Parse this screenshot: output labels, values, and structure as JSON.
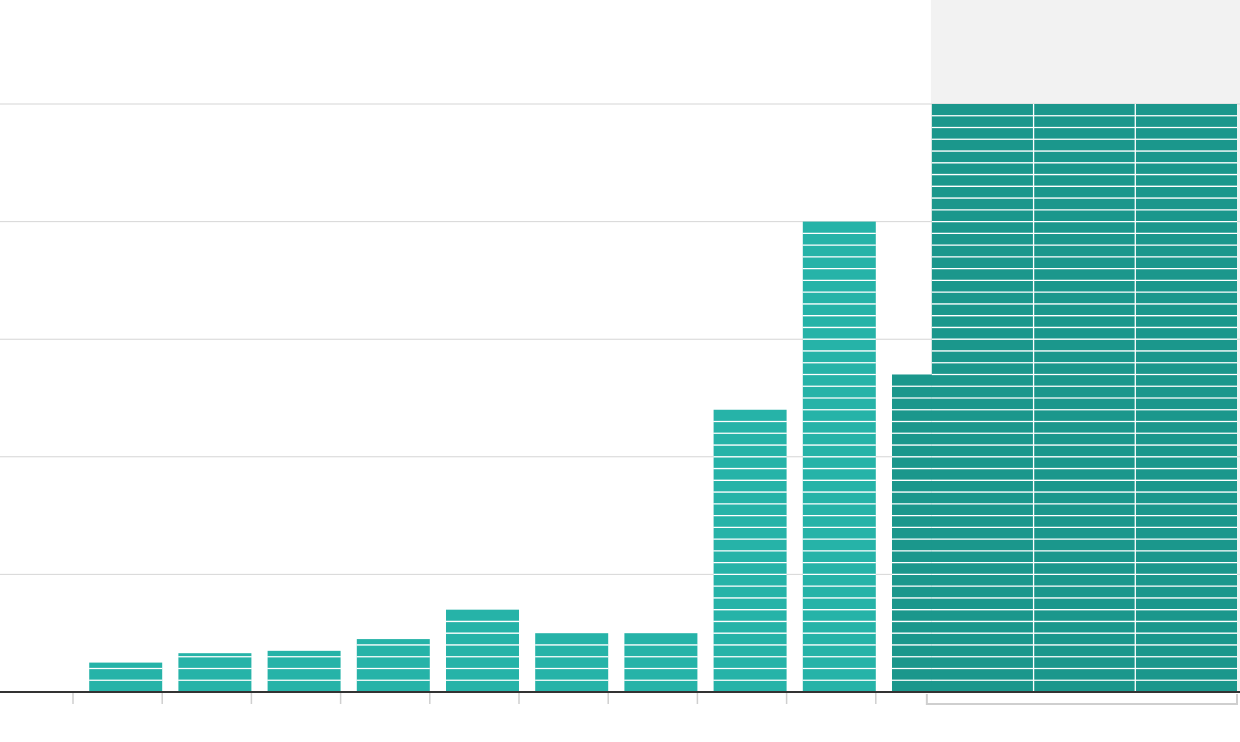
{
  "colors": {
    "bar": "#26b3a8",
    "bar_dark": "#1b978c",
    "stripe": "#ffffff",
    "grid": "#d6d6d6",
    "axis": "#333333",
    "tick": "#cfcfcf",
    "highlight_bg": "#f2f2f2"
  },
  "chart_data": {
    "type": "bar",
    "title": "",
    "xlabel": "",
    "ylabel": "",
    "ylim": [
      0,
      50
    ],
    "grid": true,
    "unit_per_stripe": 1,
    "categories": [
      "",
      "",
      "",
      "",
      "",
      "",
      "",
      "",
      "",
      "",
      "",
      ""
    ],
    "values": [
      0,
      2.5,
      3.3,
      3.5,
      4.5,
      7,
      5,
      5,
      24,
      40,
      27,
      50
    ],
    "highlighted": [
      false,
      false,
      false,
      false,
      false,
      false,
      false,
      false,
      false,
      false,
      true,
      true
    ],
    "highlight_group": {
      "from_index": 10,
      "to_index": 11
    }
  }
}
